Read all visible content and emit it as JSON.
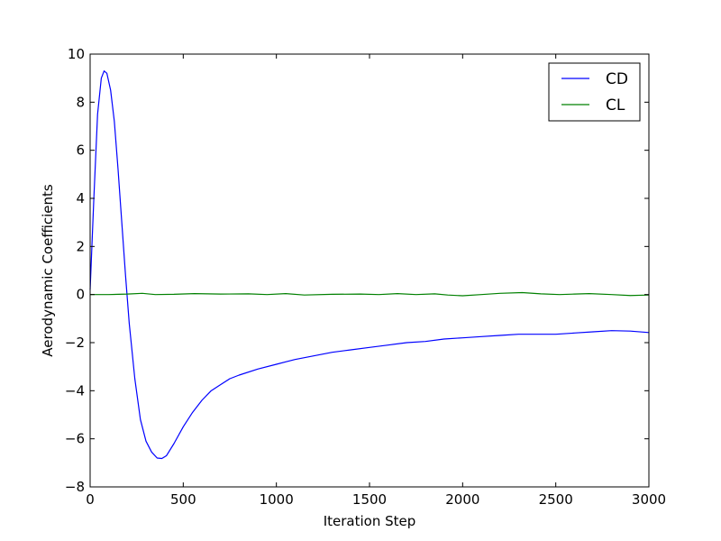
{
  "chart_data": {
    "type": "line",
    "title": "",
    "xlabel": "Iteration Step",
    "ylabel": "Aerodynamic Coefficients",
    "xlim": [
      0,
      3000
    ],
    "ylim": [
      -8,
      10
    ],
    "xticks": [
      0,
      500,
      1000,
      1500,
      2000,
      2500,
      3000
    ],
    "yticks": [
      -8,
      -6,
      -4,
      -2,
      0,
      2,
      4,
      6,
      8,
      10
    ],
    "grid": false,
    "legend_position": "top-right",
    "series": [
      {
        "name": "CD",
        "color": "#0000ff",
        "points": [
          [
            0,
            0.2
          ],
          [
            20,
            4.0
          ],
          [
            40,
            7.5
          ],
          [
            60,
            9.0
          ],
          [
            75,
            9.3
          ],
          [
            90,
            9.2
          ],
          [
            110,
            8.5
          ],
          [
            130,
            7.2
          ],
          [
            150,
            5.2
          ],
          [
            170,
            3.0
          ],
          [
            190,
            0.8
          ],
          [
            210,
            -1.2
          ],
          [
            240,
            -3.5
          ],
          [
            270,
            -5.2
          ],
          [
            300,
            -6.1
          ],
          [
            330,
            -6.55
          ],
          [
            360,
            -6.8
          ],
          [
            385,
            -6.82
          ],
          [
            410,
            -6.7
          ],
          [
            450,
            -6.2
          ],
          [
            500,
            -5.5
          ],
          [
            550,
            -4.9
          ],
          [
            600,
            -4.4
          ],
          [
            650,
            -4.0
          ],
          [
            700,
            -3.75
          ],
          [
            750,
            -3.5
          ],
          [
            800,
            -3.35
          ],
          [
            900,
            -3.1
          ],
          [
            1000,
            -2.9
          ],
          [
            1050,
            -2.8
          ],
          [
            1100,
            -2.7
          ],
          [
            1200,
            -2.55
          ],
          [
            1300,
            -2.4
          ],
          [
            1400,
            -2.3
          ],
          [
            1500,
            -2.2
          ],
          [
            1600,
            -2.1
          ],
          [
            1700,
            -2.0
          ],
          [
            1800,
            -1.95
          ],
          [
            1900,
            -1.85
          ],
          [
            2000,
            -1.8
          ],
          [
            2100,
            -1.75
          ],
          [
            2200,
            -1.7
          ],
          [
            2300,
            -1.65
          ],
          [
            2400,
            -1.65
          ],
          [
            2500,
            -1.65
          ],
          [
            2600,
            -1.6
          ],
          [
            2700,
            -1.55
          ],
          [
            2800,
            -1.5
          ],
          [
            2900,
            -1.52
          ],
          [
            3000,
            -1.58
          ]
        ]
      },
      {
        "name": "CL",
        "color": "#008000",
        "points": [
          [
            0,
            0.0
          ],
          [
            100,
            0.0
          ],
          [
            200,
            0.02
          ],
          [
            280,
            0.05
          ],
          [
            350,
            0.0
          ],
          [
            450,
            0.01
          ],
          [
            560,
            0.04
          ],
          [
            700,
            0.02
          ],
          [
            850,
            0.03
          ],
          [
            950,
            0.0
          ],
          [
            1050,
            0.04
          ],
          [
            1150,
            -0.02
          ],
          [
            1300,
            0.01
          ],
          [
            1450,
            0.02
          ],
          [
            1550,
            0.0
          ],
          [
            1650,
            0.04
          ],
          [
            1750,
            0.0
          ],
          [
            1850,
            0.03
          ],
          [
            1920,
            -0.02
          ],
          [
            2000,
            -0.05
          ],
          [
            2100,
            0.0
          ],
          [
            2200,
            0.05
          ],
          [
            2320,
            0.08
          ],
          [
            2420,
            0.03
          ],
          [
            2520,
            0.0
          ],
          [
            2600,
            0.02
          ],
          [
            2680,
            0.04
          ],
          [
            2800,
            0.0
          ],
          [
            2900,
            -0.04
          ],
          [
            3000,
            -0.02
          ]
        ]
      }
    ]
  }
}
